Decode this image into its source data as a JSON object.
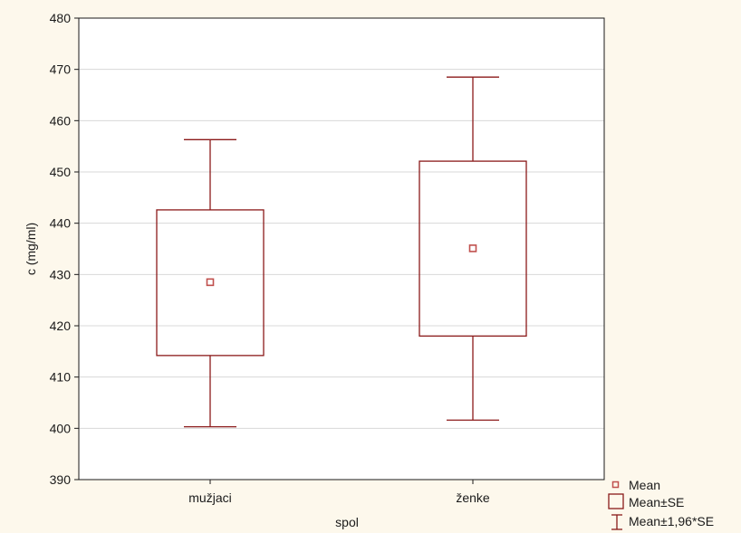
{
  "chart_data": {
    "type": "box",
    "xlabel": "spol",
    "ylabel": "c (mg/ml)",
    "ylim": [
      390,
      480
    ],
    "yticks": [
      390,
      400,
      410,
      420,
      430,
      440,
      450,
      460,
      470,
      480
    ],
    "grid": true,
    "legend_position": "bottom-right",
    "categories": [
      "mužjaci",
      "ženke"
    ],
    "series": [
      {
        "category": "mužjaci",
        "mean": 428.5,
        "se_low": 414.2,
        "se_high": 442.6,
        "ci_low": 400.3,
        "ci_high": 456.3
      },
      {
        "category": "ženke",
        "mean": 435.1,
        "se_low": 418.0,
        "se_high": 452.1,
        "ci_low": 401.6,
        "ci_high": 468.5
      }
    ],
    "legend": {
      "mean": "Mean",
      "se": "Mean±SE",
      "ci": "Mean±1,96*SE"
    },
    "colors": {
      "background": "#fdf8ec",
      "plot_background": "#ffffff",
      "box_stroke": "#8b1a1a",
      "mean_marker": "#c0504d",
      "grid": "#d8d8d8",
      "frame": "#1a1a1a"
    }
  }
}
